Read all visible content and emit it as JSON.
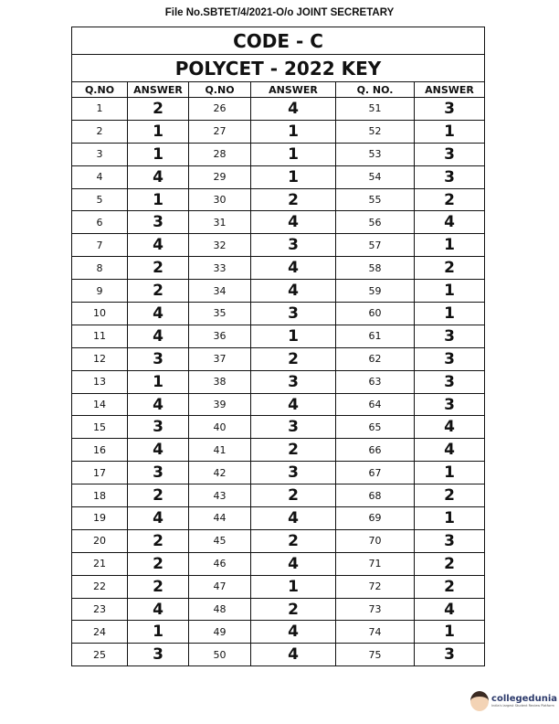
{
  "header": {
    "file_no": "File No.SBTET/4/2021-O/o JOINT SECRETARY"
  },
  "table": {
    "code": "CODE - C",
    "title": "POLYCET - 2022 KEY",
    "columns": [
      "Q.NO",
      "ANSWER",
      "Q.NO",
      "ANSWER",
      "Q. NO.",
      "ANSWER"
    ],
    "rows": [
      [
        "1",
        "2",
        "26",
        "4",
        "51",
        "3"
      ],
      [
        "2",
        "1",
        "27",
        "1",
        "52",
        "1"
      ],
      [
        "3",
        "1",
        "28",
        "1",
        "53",
        "3"
      ],
      [
        "4",
        "4",
        "29",
        "1",
        "54",
        "3"
      ],
      [
        "5",
        "1",
        "30",
        "2",
        "55",
        "2"
      ],
      [
        "6",
        "3",
        "31",
        "4",
        "56",
        "4"
      ],
      [
        "7",
        "4",
        "32",
        "3",
        "57",
        "1"
      ],
      [
        "8",
        "2",
        "33",
        "4",
        "58",
        "2"
      ],
      [
        "9",
        "2",
        "34",
        "4",
        "59",
        "1"
      ],
      [
        "10",
        "4",
        "35",
        "3",
        "60",
        "1"
      ],
      [
        "11",
        "4",
        "36",
        "1",
        "61",
        "3"
      ],
      [
        "12",
        "3",
        "37",
        "2",
        "62",
        "3"
      ],
      [
        "13",
        "1",
        "38",
        "3",
        "63",
        "3"
      ],
      [
        "14",
        "4",
        "39",
        "4",
        "64",
        "3"
      ],
      [
        "15",
        "3",
        "40",
        "3",
        "65",
        "4"
      ],
      [
        "16",
        "4",
        "41",
        "2",
        "66",
        "4"
      ],
      [
        "17",
        "3",
        "42",
        "3",
        "67",
        "1"
      ],
      [
        "18",
        "2",
        "43",
        "2",
        "68",
        "2"
      ],
      [
        "19",
        "4",
        "44",
        "4",
        "69",
        "1"
      ],
      [
        "20",
        "2",
        "45",
        "2",
        "70",
        "3"
      ],
      [
        "21",
        "2",
        "46",
        "4",
        "71",
        "2"
      ],
      [
        "22",
        "2",
        "47",
        "1",
        "72",
        "2"
      ],
      [
        "23",
        "4",
        "48",
        "2",
        "73",
        "4"
      ],
      [
        "24",
        "1",
        "49",
        "4",
        "74",
        "1"
      ],
      [
        "25",
        "3",
        "50",
        "4",
        "75",
        "3"
      ]
    ]
  },
  "watermark": {
    "brand": "collegedunia",
    "tagline": "India's largest Student Review Platform"
  }
}
